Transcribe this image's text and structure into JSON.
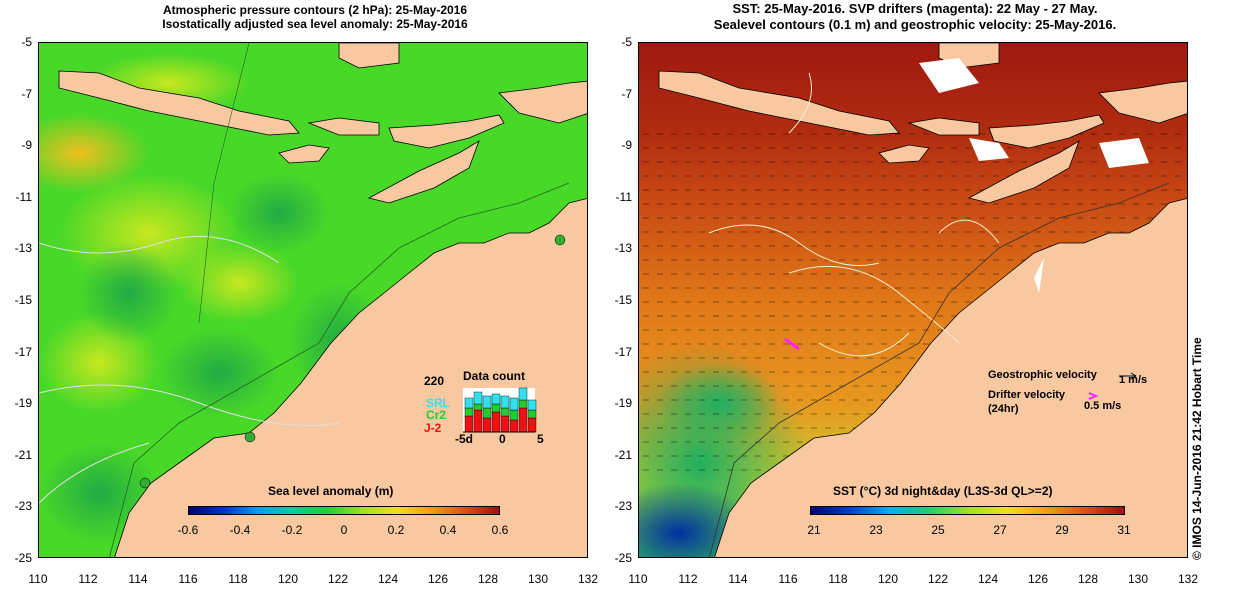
{
  "left_panel": {
    "title_line1": "Atmospheric pressure contours (2 hPa): 25-May-2016",
    "title_line2": "Isostatically adjusted sea level anomaly: 25-May-2016",
    "colorbar": {
      "title": "Sea level anomaly (m)",
      "labels": [
        "-0.6",
        "-0.4",
        "-0.2",
        "0",
        "0.2",
        "0.4",
        "0.6"
      ]
    },
    "data_count": {
      "title": "Data count",
      "max_label": "220",
      "series": [
        "SRL",
        "Cr2",
        "J-2"
      ],
      "series_colors": [
        "#33e0f0",
        "#22cc33",
        "#ee1111"
      ],
      "xlabels": [
        "-5d",
        "0",
        "5"
      ]
    }
  },
  "right_panel": {
    "title_line1": "SST: 25-May-2016. SVP drifters (magenta): 22 May - 27 May.",
    "title_line2": "Sealevel contours (0.1 m) and geostrophic velocity: 25-May-2016.",
    "colorbar": {
      "title": "SST (°C) 3d night&day (L3S-3d QL>=2)",
      "labels": [
        "21",
        "23",
        "25",
        "27",
        "29",
        "31"
      ]
    },
    "geostrophic_label": "Geostrophic velocity",
    "geostrophic_scale": "1 m/s",
    "drifter_label_1": "Drifter velocity",
    "drifter_label_2": "(24hr)",
    "drifter_scale": "0.5 m/s"
  },
  "axes": {
    "y_ticks": [
      "-5",
      "-7",
      "-9",
      "-11",
      "-13",
      "-15",
      "-17",
      "-19",
      "-21",
      "-23",
      "-25"
    ],
    "x_ticks": [
      "110",
      "112",
      "114",
      "116",
      "118",
      "120",
      "122",
      "124",
      "126",
      "128",
      "130",
      "132"
    ]
  },
  "copyright": "© IMOS 14-Jun-2016 21:42 Hobart Time",
  "colors": {
    "land": "#f8c8a0",
    "ocean_green": "#44dd22",
    "sst_orange": "#e07818",
    "sst_red": "#a01810"
  }
}
